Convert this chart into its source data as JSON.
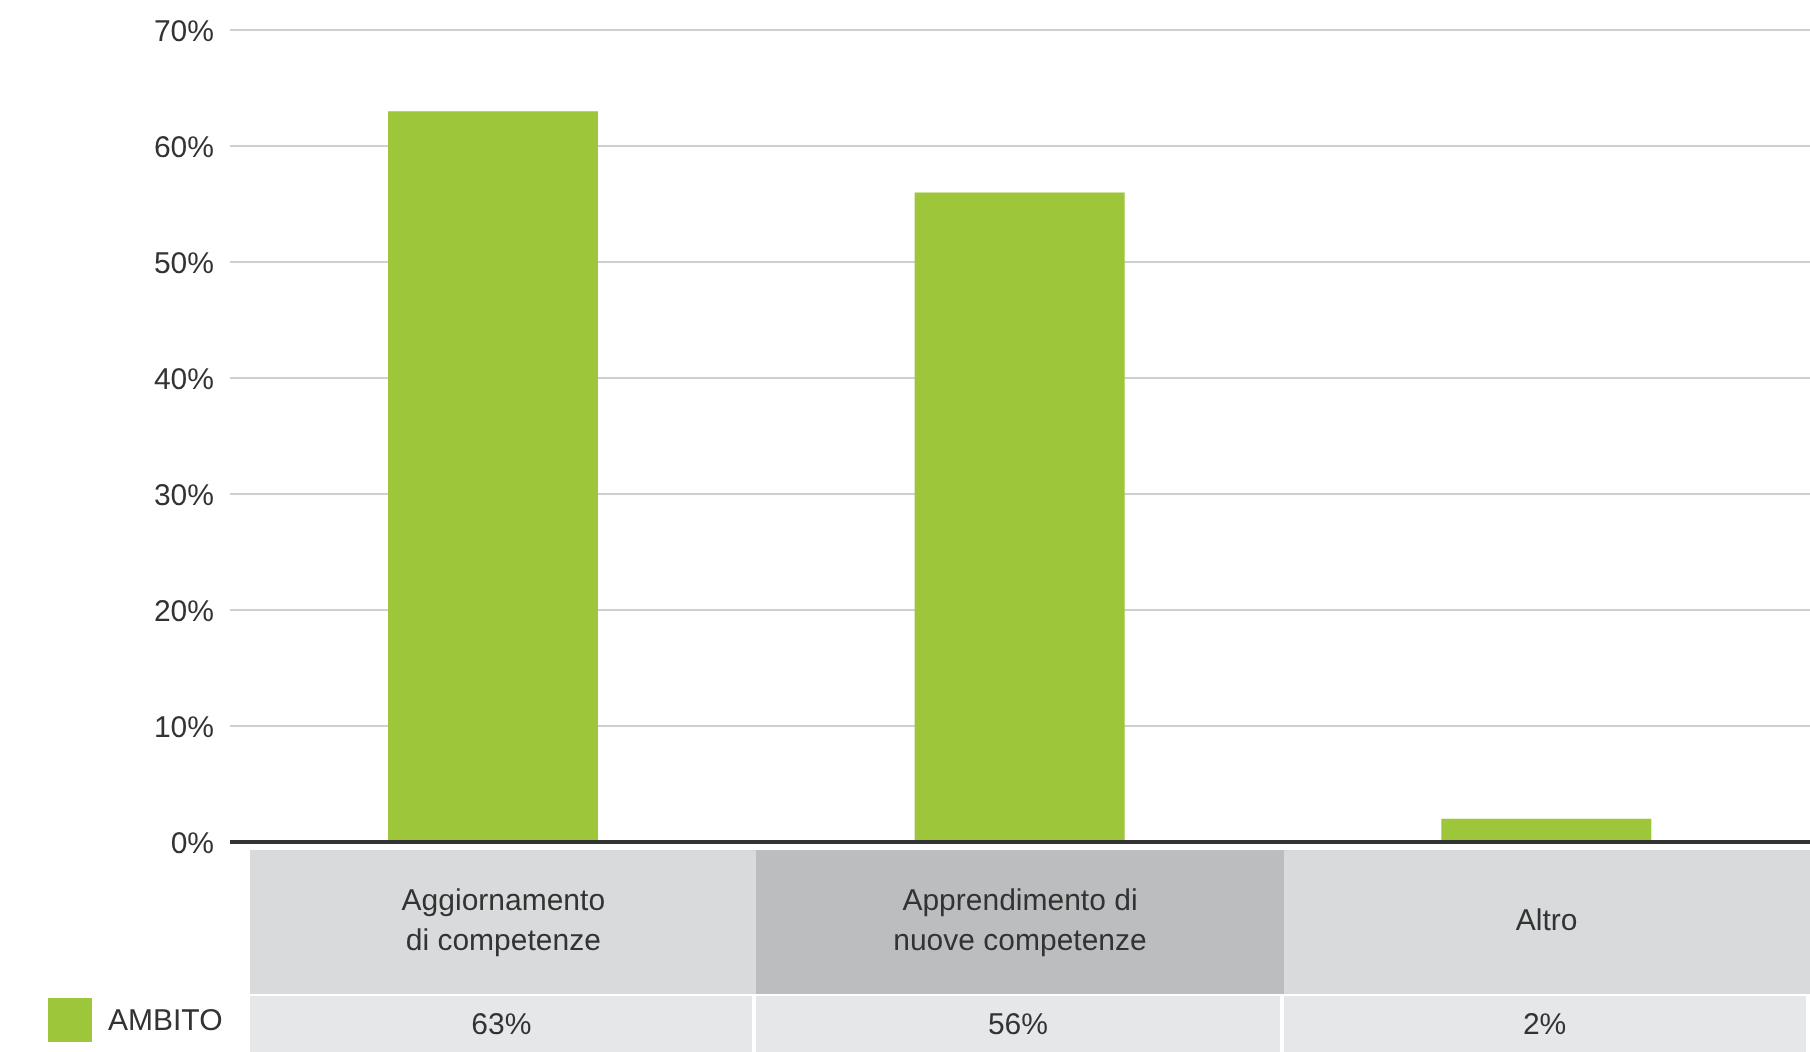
{
  "chart_data": {
    "type": "bar",
    "categories": [
      "Aggiornamento\ndi competenze",
      "Apprendimento di\nnuove competenze",
      "Altro"
    ],
    "series": [
      {
        "name": "AMBITO",
        "color": "#9dc63b",
        "values": [
          63,
          56,
          2
        ],
        "value_labels": [
          "63%",
          "56%",
          "2%"
        ]
      }
    ],
    "ylim": [
      0,
      70
    ],
    "yticks": [
      {
        "value": 0,
        "label": "0%"
      },
      {
        "value": 10,
        "label": "10%"
      },
      {
        "value": 20,
        "label": "20%"
      },
      {
        "value": 30,
        "label": "30%"
      },
      {
        "value": 40,
        "label": "40%"
      },
      {
        "value": 50,
        "label": "50%"
      },
      {
        "value": 60,
        "label": "60%"
      },
      {
        "value": 70,
        "label": "70%"
      }
    ],
    "grid": "y",
    "legend": "bottom left"
  }
}
